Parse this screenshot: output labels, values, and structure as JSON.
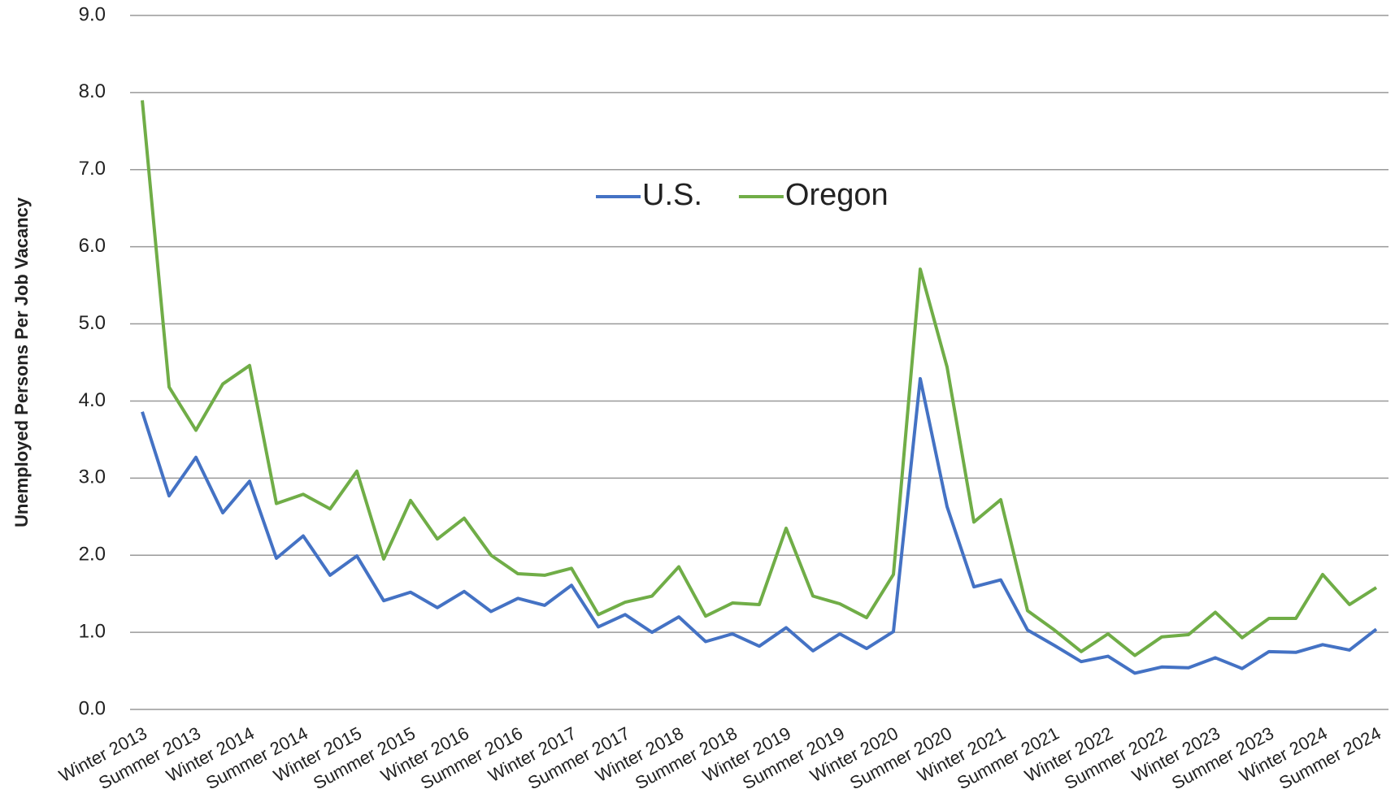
{
  "chart_data": {
    "type": "line",
    "y_label": "Unemployed Persons Per Job Vacancy",
    "categories": [
      "Winter 2013",
      null,
      "Summer 2013",
      null,
      "Winter 2014",
      null,
      "Summer 2014",
      null,
      "Winter 2015",
      null,
      "Summer 2015",
      null,
      "Winter 2016",
      null,
      "Summer 2016",
      null,
      "Winter 2017",
      null,
      "Summer 2017",
      null,
      "Winter 2018",
      null,
      "Summer 2018",
      null,
      "Winter 2019",
      null,
      "Summer 2019",
      null,
      "Winter 2020",
      null,
      "Summer 2020",
      null,
      "Winter 2021",
      null,
      "Summer 2021",
      null,
      "Winter 2022",
      null,
      "Summer 2022",
      null,
      "Winter 2023",
      null,
      "Summer 2023",
      null,
      "Winter 2024",
      null,
      "Summer 2024"
    ],
    "series": [
      {
        "name": "U.S.",
        "color": "#4472c4",
        "values": [
          3.86,
          2.77,
          3.27,
          2.55,
          2.96,
          1.96,
          2.25,
          1.74,
          1.99,
          1.41,
          1.52,
          1.32,
          1.53,
          1.27,
          1.44,
          1.35,
          1.61,
          1.07,
          1.23,
          1.0,
          1.2,
          0.88,
          0.98,
          0.82,
          1.06,
          0.76,
          0.98,
          0.79,
          1.01,
          4.29,
          2.63,
          1.59,
          1.68,
          1.03,
          0.83,
          0.62,
          0.69,
          0.47,
          0.55,
          0.54,
          0.67,
          0.53,
          0.75,
          0.74,
          0.84,
          0.77,
          1.04
        ]
      },
      {
        "name": "Oregon",
        "color": "#70ad47",
        "values": [
          7.9,
          4.18,
          3.62,
          4.22,
          4.46,
          2.67,
          2.79,
          2.6,
          3.09,
          1.95,
          2.71,
          2.21,
          2.48,
          2.0,
          1.76,
          1.74,
          1.83,
          1.23,
          1.39,
          1.47,
          1.85,
          1.21,
          1.38,
          1.36,
          2.35,
          1.47,
          1.37,
          1.19,
          1.75,
          5.71,
          4.44,
          2.43,
          2.72,
          1.28,
          1.03,
          0.75,
          0.98,
          0.7,
          0.94,
          0.97,
          1.26,
          0.93,
          1.18,
          1.18,
          1.75,
          1.36,
          1.58
        ]
      }
    ],
    "ylim": [
      0,
      9
    ],
    "yticks": [
      {
        "value": 0,
        "label": "0.0"
      },
      {
        "value": 1,
        "label": "1.0"
      },
      {
        "value": 2,
        "label": "2.0"
      },
      {
        "value": 3,
        "label": "3.0"
      },
      {
        "value": 4,
        "label": "4.0"
      },
      {
        "value": 5,
        "label": "5.0"
      },
      {
        "value": 6,
        "label": "6.0"
      },
      {
        "value": 7,
        "label": "7.0"
      },
      {
        "value": 8,
        "label": "8.0"
      },
      {
        "value": 9,
        "label": "9.0"
      }
    ],
    "grid": true,
    "legend": "top"
  }
}
